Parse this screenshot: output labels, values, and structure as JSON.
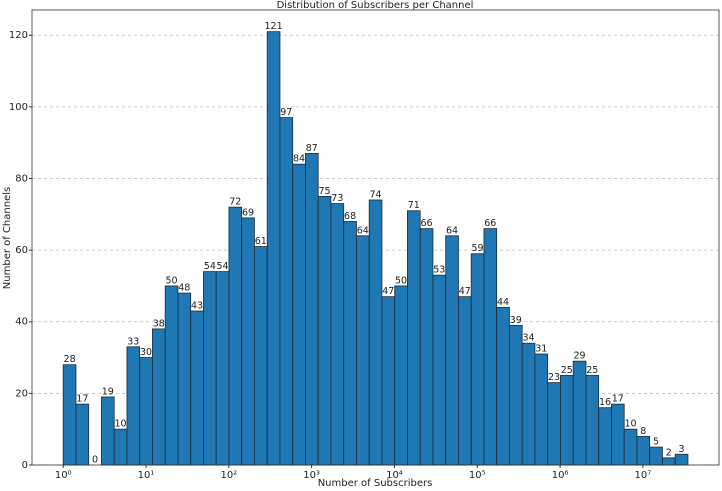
{
  "chart_data": {
    "type": "histogram",
    "title": "Distribution of Subscribers per Channel",
    "x_label": "Number of Subscribers",
    "y_label": "Number of Channels",
    "bins": [
      1,
      1.426,
      2.032,
      2.897,
      4.129,
      5.886,
      8.391,
      11.96,
      17.05,
      24.3,
      34.64,
      49.39,
      70.4,
      100.3,
      143,
      203.9,
      290.7,
      414.3,
      590.6,
      842,
      1200,
      1711,
      2439,
      3477,
      4955,
      7063,
      10070,
      14350,
      20460,
      29160,
      41570,
      59260,
      84470,
      120400,
      171600,
      244700,
      348800,
      497200,
      708700,
      1010000,
      1440000,
      2053000,
      2926000,
      4172000,
      5946000,
      8477000,
      12080000,
      17220000,
      24550000,
      35000000
    ],
    "values": [
      28,
      17,
      0,
      19,
      10,
      33,
      30,
      38,
      50,
      48,
      43,
      54,
      54,
      72,
      69,
      61,
      121,
      97,
      84,
      87,
      75,
      73,
      68,
      64,
      74,
      47,
      50,
      71,
      66,
      53,
      64,
      47,
      59,
      66,
      44,
      39,
      34,
      31,
      23,
      25,
      29,
      25,
      16,
      17,
      10,
      8,
      5,
      2,
      3
    ],
    "color": "#1f77b4",
    "edgecolor": "#1a2a3a",
    "xscale": "log",
    "xlim": [
      0.42,
      83000000
    ],
    "xticks": [
      {
        "value": 1,
        "label": "10⁰"
      },
      {
        "value": 10,
        "label": "10¹"
      },
      {
        "value": 100,
        "label": "10²"
      },
      {
        "value": 1000,
        "label": "10³"
      },
      {
        "value": 10000,
        "label": "10⁴"
      },
      {
        "value": 100000,
        "label": "10⁵"
      },
      {
        "value": 1000000,
        "label": "10⁶"
      },
      {
        "value": 10000000,
        "label": "10⁷"
      }
    ],
    "ylim": [
      0,
      127.05
    ],
    "yticks": [
      0,
      20,
      40,
      60,
      80,
      100,
      120
    ],
    "grid": "y"
  }
}
